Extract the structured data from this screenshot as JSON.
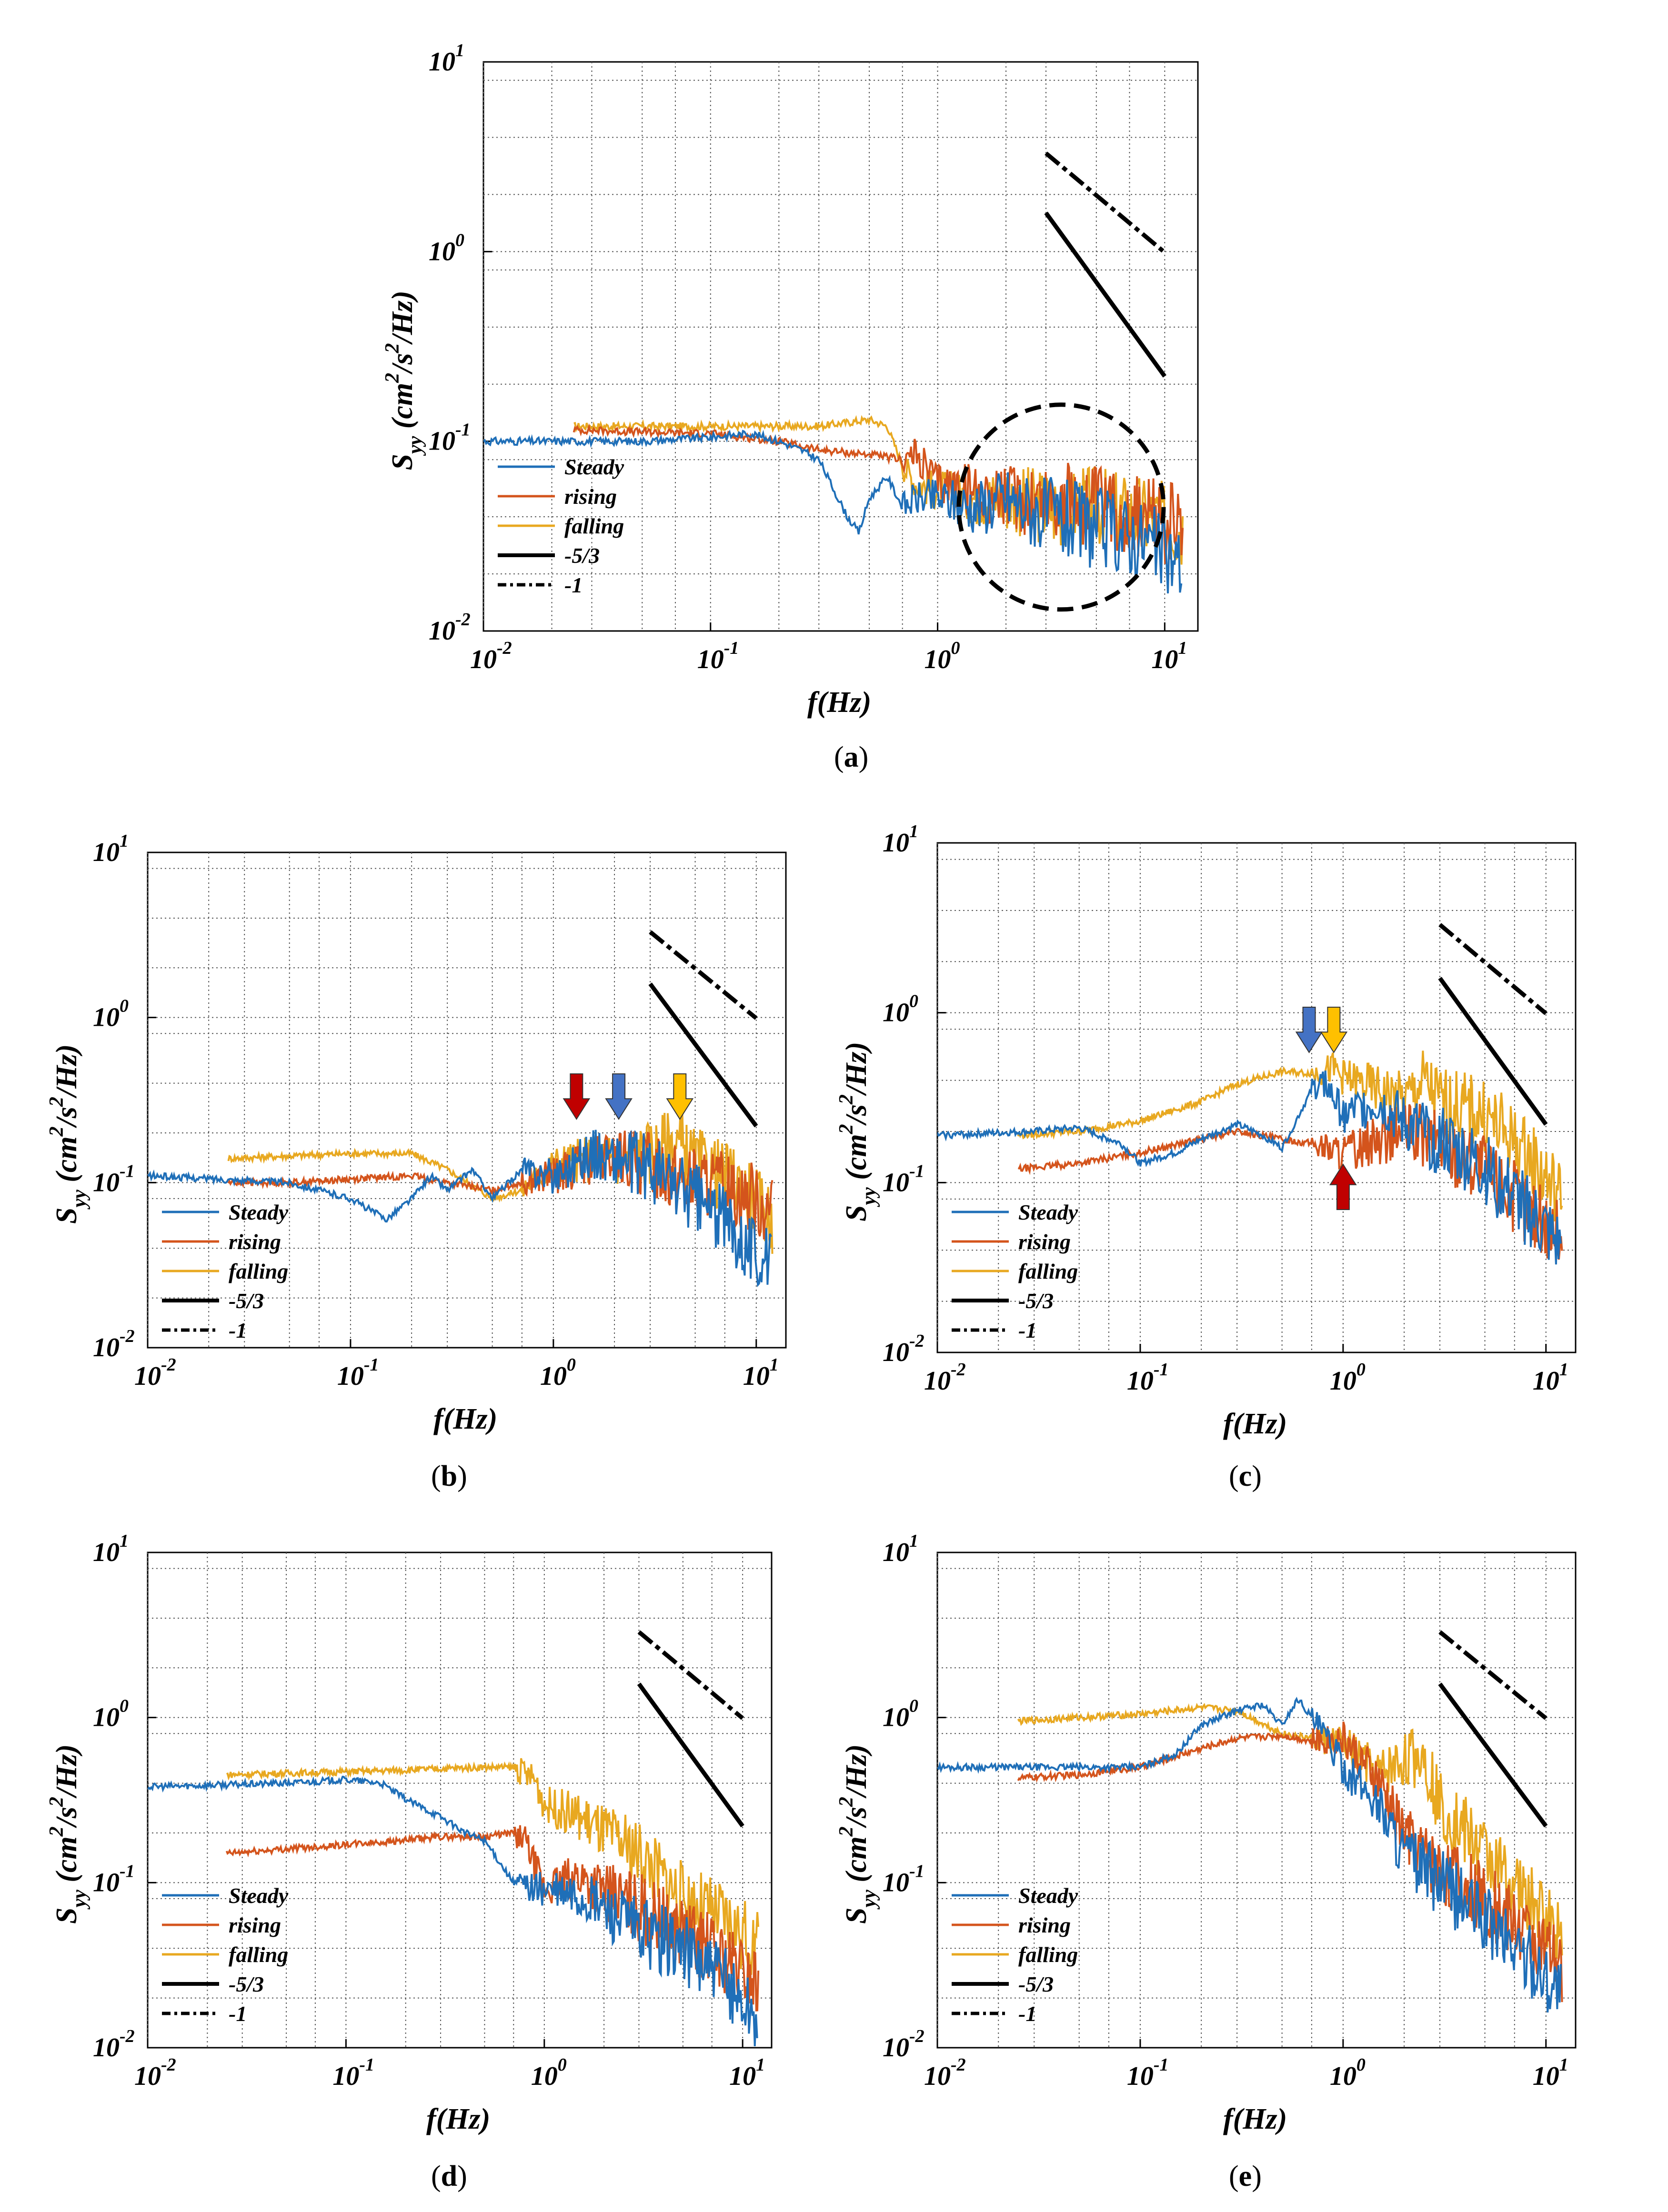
{
  "colors": {
    "steady": "#1f6fb8",
    "rising": "#d4541c",
    "falling": "#e8a820",
    "ref": "#000000",
    "arrow_blue": "#4472c4",
    "arrow_red": "#c00000",
    "arrow_yellow": "#ffc000"
  },
  "chart_data": [
    {
      "id": "a",
      "caption": "(a)",
      "type": "line",
      "xlabel": "f(Hz)",
      "ylabel": "S_yy (cm^2/s^2/Hz)",
      "xlim": [
        0.01,
        14
      ],
      "ylim": [
        0.01,
        10
      ],
      "xscale": "log",
      "yscale": "log",
      "xticks": [
        "10-2",
        "10-1",
        "100",
        "101"
      ],
      "yticks": [
        "10-2",
        "10-1",
        "100",
        "101"
      ],
      "legend": [
        "Steady",
        "rising",
        "falling",
        "-5/3",
        "-1"
      ],
      "series": [
        {
          "name": "Steady",
          "x": [
            0.01,
            0.05,
            0.1,
            0.15,
            0.2,
            0.25,
            0.3,
            0.4,
            0.45,
            0.5,
            0.6,
            0.7,
            0.8,
            1,
            1.5,
            2,
            3,
            5,
            8,
            12
          ],
          "y": [
            0.1,
            0.1,
            0.105,
            0.11,
            0.1,
            0.09,
            0.08,
            0.04,
            0.033,
            0.05,
            0.065,
            0.045,
            0.05,
            0.05,
            0.045,
            0.05,
            0.04,
            0.035,
            0.03,
            0.022
          ]
        },
        {
          "name": "rising",
          "x": [
            0.025,
            0.05,
            0.1,
            0.2,
            0.3,
            0.5,
            0.7,
            0.8,
            1,
            1.5,
            2,
            3,
            5,
            8,
            12
          ],
          "y": [
            0.115,
            0.112,
            0.11,
            0.1,
            0.09,
            0.085,
            0.08,
            0.085,
            0.06,
            0.055,
            0.05,
            0.05,
            0.045,
            0.04,
            0.035
          ]
        },
        {
          "name": "falling",
          "x": [
            0.025,
            0.05,
            0.1,
            0.2,
            0.3,
            0.5,
            0.6,
            0.7,
            0.8,
            1,
            1.5,
            2,
            3,
            5,
            8,
            12
          ],
          "y": [
            0.12,
            0.12,
            0.12,
            0.12,
            0.12,
            0.13,
            0.12,
            0.075,
            0.06,
            0.055,
            0.05,
            0.05,
            0.045,
            0.045,
            0.04,
            0.035
          ]
        }
      ],
      "ref_lines": {
        "slope_53": {
          "x": [
            3,
            10
          ],
          "y": [
            1.6,
            0.22
          ]
        },
        "slope_1": {
          "x": [
            3,
            10
          ],
          "y": [
            3.3,
            0.99
          ]
        }
      },
      "annotations": [
        {
          "type": "dashed-circle",
          "center_x": 3.5,
          "center_y": 0.045,
          "note": "high-frequency region"
        }
      ]
    },
    {
      "id": "b",
      "caption": "(b)",
      "type": "line",
      "xlabel": "f(Hz)",
      "ylabel": "S_yy (cm^2/s^2/Hz)",
      "xlim": [
        0.01,
        14
      ],
      "ylim": [
        0.01,
        10
      ],
      "xscale": "log",
      "yscale": "log",
      "xticks": [
        "10-2",
        "10-1",
        "100",
        "101"
      ],
      "yticks": [
        "10-2",
        "10-1",
        "100",
        "101"
      ],
      "legend": [
        "Steady",
        "rising",
        "falling",
        "-5/3",
        "-1"
      ],
      "series": [
        {
          "name": "Steady",
          "x": [
            0.01,
            0.05,
            0.1,
            0.15,
            0.2,
            0.25,
            0.3,
            0.4,
            0.5,
            0.7,
            1,
            1.5,
            2,
            3,
            5,
            8,
            12
          ],
          "y": [
            0.11,
            0.1,
            0.08,
            0.06,
            0.08,
            0.11,
            0.09,
            0.12,
            0.08,
            0.12,
            0.11,
            0.15,
            0.14,
            0.12,
            0.08,
            0.05,
            0.03
          ]
        },
        {
          "name": "rising",
          "x": [
            0.025,
            0.05,
            0.1,
            0.2,
            0.3,
            0.5,
            0.7,
            1,
            1.5,
            2,
            3,
            5,
            8,
            12
          ],
          "y": [
            0.1,
            0.1,
            0.105,
            0.11,
            0.1,
            0.09,
            0.1,
            0.11,
            0.13,
            0.14,
            0.13,
            0.1,
            0.09,
            0.07
          ]
        },
        {
          "name": "falling",
          "x": [
            0.025,
            0.05,
            0.1,
            0.2,
            0.3,
            0.5,
            0.7,
            1,
            1.5,
            2,
            3,
            4,
            5,
            8,
            12
          ],
          "y": [
            0.14,
            0.145,
            0.15,
            0.15,
            0.12,
            0.08,
            0.09,
            0.13,
            0.14,
            0.14,
            0.15,
            0.18,
            0.13,
            0.1,
            0.06
          ]
        }
      ],
      "ref_lines": {
        "slope_53": {
          "x": [
            3,
            10
          ],
          "y": [
            1.6,
            0.22
          ]
        },
        "slope_1": {
          "x": [
            3,
            10
          ],
          "y": [
            3.3,
            0.99
          ]
        }
      },
      "annotations": [
        {
          "type": "down-arrow",
          "color": "red",
          "x": 1.3
        },
        {
          "type": "down-arrow",
          "color": "blue",
          "x": 2.1
        },
        {
          "type": "down-arrow",
          "color": "yellow",
          "x": 4.2
        }
      ]
    },
    {
      "id": "c",
      "caption": "(c)",
      "type": "line",
      "xlabel": "f(Hz)",
      "ylabel": "S_yy (cm^2/s^2/Hz)",
      "xlim": [
        0.01,
        14
      ],
      "ylim": [
        0.01,
        10
      ],
      "xscale": "log",
      "yscale": "log",
      "xticks": [
        "10-2",
        "10-1",
        "100",
        "101"
      ],
      "yticks": [
        "10-2",
        "10-1",
        "100",
        "101"
      ],
      "legend": [
        "Steady",
        "rising",
        "falling",
        "-5/3",
        "-1"
      ],
      "series": [
        {
          "name": "Steady",
          "x": [
            0.01,
            0.03,
            0.05,
            0.08,
            0.1,
            0.15,
            0.2,
            0.3,
            0.4,
            0.5,
            0.7,
            0.8,
            1,
            1.5,
            2,
            3,
            5,
            8,
            12
          ],
          "y": [
            0.19,
            0.2,
            0.21,
            0.17,
            0.13,
            0.15,
            0.18,
            0.22,
            0.19,
            0.16,
            0.35,
            0.4,
            0.25,
            0.3,
            0.22,
            0.18,
            0.12,
            0.07,
            0.04
          ]
        },
        {
          "name": "rising",
          "x": [
            0.025,
            0.05,
            0.1,
            0.2,
            0.3,
            0.5,
            0.7,
            1,
            1.5,
            2,
            3,
            5,
            8,
            12
          ],
          "y": [
            0.12,
            0.13,
            0.15,
            0.18,
            0.2,
            0.18,
            0.17,
            0.15,
            0.18,
            0.2,
            0.17,
            0.12,
            0.07,
            0.05
          ]
        },
        {
          "name": "falling",
          "x": [
            0.025,
            0.05,
            0.1,
            0.2,
            0.3,
            0.5,
            0.7,
            0.9,
            1,
            1.5,
            2,
            2.5,
            3,
            5,
            8,
            12
          ],
          "y": [
            0.19,
            0.2,
            0.23,
            0.3,
            0.38,
            0.45,
            0.44,
            0.47,
            0.42,
            0.35,
            0.3,
            0.4,
            0.3,
            0.25,
            0.15,
            0.08
          ]
        }
      ],
      "ref_lines": {
        "slope_53": {
          "x": [
            3,
            10
          ],
          "y": [
            1.6,
            0.22
          ]
        },
        "slope_1": {
          "x": [
            3,
            10
          ],
          "y": [
            3.3,
            0.99
          ]
        }
      },
      "annotations": [
        {
          "type": "down-arrow",
          "color": "blue",
          "x": 0.68
        },
        {
          "type": "down-arrow",
          "color": "yellow",
          "x": 0.9
        },
        {
          "type": "up-arrow",
          "color": "red",
          "x": 1.0
        }
      ]
    },
    {
      "id": "d",
      "caption": "(d)",
      "type": "line",
      "xlabel": "f(Hz)",
      "ylabel": "S_yy (cm^2/s^2/Hz)",
      "xlim": [
        0.01,
        14
      ],
      "ylim": [
        0.01,
        10
      ],
      "xscale": "log",
      "yscale": "log",
      "xticks": [
        "10-2",
        "10-1",
        "100",
        "101"
      ],
      "yticks": [
        "10-2",
        "10-1",
        "100",
        "101"
      ],
      "legend": [
        "Steady",
        "rising",
        "falling",
        "-5/3",
        "-1"
      ],
      "series": [
        {
          "name": "Steady",
          "x": [
            0.01,
            0.05,
            0.1,
            0.15,
            0.2,
            0.3,
            0.4,
            0.5,
            0.7,
            1,
            1.5,
            2,
            3,
            5,
            8,
            12
          ],
          "y": [
            0.38,
            0.4,
            0.42,
            0.4,
            0.32,
            0.25,
            0.2,
            0.18,
            0.1,
            0.09,
            0.08,
            0.07,
            0.05,
            0.04,
            0.025,
            0.015
          ]
        },
        {
          "name": "rising",
          "x": [
            0.025,
            0.05,
            0.1,
            0.2,
            0.3,
            0.5,
            0.7,
            0.8,
            1,
            1.5,
            2,
            3,
            5,
            8,
            12
          ],
          "y": [
            0.15,
            0.16,
            0.17,
            0.18,
            0.19,
            0.19,
            0.2,
            0.18,
            0.09,
            0.11,
            0.09,
            0.07,
            0.05,
            0.035,
            0.025
          ]
        },
        {
          "name": "falling",
          "x": [
            0.025,
            0.05,
            0.1,
            0.2,
            0.3,
            0.5,
            0.7,
            0.9,
            1,
            1.5,
            2,
            3,
            5,
            8,
            12
          ],
          "y": [
            0.45,
            0.46,
            0.47,
            0.48,
            0.49,
            0.5,
            0.5,
            0.42,
            0.3,
            0.25,
            0.2,
            0.15,
            0.08,
            0.06,
            0.04
          ]
        }
      ],
      "ref_lines": {
        "slope_53": {
          "x": [
            3,
            10
          ],
          "y": [
            1.6,
            0.22
          ]
        },
        "slope_1": {
          "x": [
            3,
            10
          ],
          "y": [
            3.3,
            0.99
          ]
        }
      },
      "annotations": []
    },
    {
      "id": "e",
      "caption": "(e)",
      "type": "line",
      "xlabel": "f(Hz)",
      "ylabel": "S_yy (cm^2/s^2/Hz)",
      "xlim": [
        0.01,
        14
      ],
      "ylim": [
        0.01,
        10
      ],
      "xscale": "log",
      "yscale": "log",
      "xticks": [
        "10-2",
        "10-1",
        "100",
        "101"
      ],
      "yticks": [
        "10-2",
        "10-1",
        "100",
        "101"
      ],
      "legend": [
        "Steady",
        "rising",
        "falling",
        "-5/3",
        "-1"
      ],
      "series": [
        {
          "name": "Steady",
          "x": [
            0.01,
            0.05,
            0.1,
            0.15,
            0.2,
            0.3,
            0.4,
            0.5,
            0.6,
            0.7,
            0.8,
            1,
            1.5,
            2,
            3,
            5,
            8,
            12
          ],
          "y": [
            0.5,
            0.5,
            0.5,
            0.6,
            0.9,
            1.1,
            1.2,
            0.9,
            1.3,
            1.0,
            0.8,
            0.5,
            0.3,
            0.15,
            0.1,
            0.06,
            0.035,
            0.022
          ]
        },
        {
          "name": "rising",
          "x": [
            0.025,
            0.05,
            0.1,
            0.2,
            0.3,
            0.5,
            0.7,
            1,
            1.5,
            2,
            3,
            5,
            8,
            12
          ],
          "y": [
            0.43,
            0.45,
            0.5,
            0.65,
            0.75,
            0.78,
            0.72,
            0.75,
            0.4,
            0.2,
            0.12,
            0.08,
            0.05,
            0.03
          ]
        },
        {
          "name": "falling",
          "x": [
            0.025,
            0.05,
            0.1,
            0.2,
            0.3,
            0.5,
            0.7,
            1,
            1.5,
            2,
            2.5,
            3,
            5,
            8,
            12
          ],
          "y": [
            0.95,
            1.0,
            1.05,
            1.15,
            1.1,
            0.8,
            0.75,
            0.7,
            0.45,
            0.55,
            0.6,
            0.3,
            0.15,
            0.08,
            0.05
          ]
        }
      ],
      "ref_lines": {
        "slope_53": {
          "x": [
            3,
            10
          ],
          "y": [
            1.6,
            0.22
          ]
        },
        "slope_1": {
          "x": [
            3,
            10
          ],
          "y": [
            3.3,
            0.99
          ]
        }
      },
      "annotations": []
    }
  ]
}
